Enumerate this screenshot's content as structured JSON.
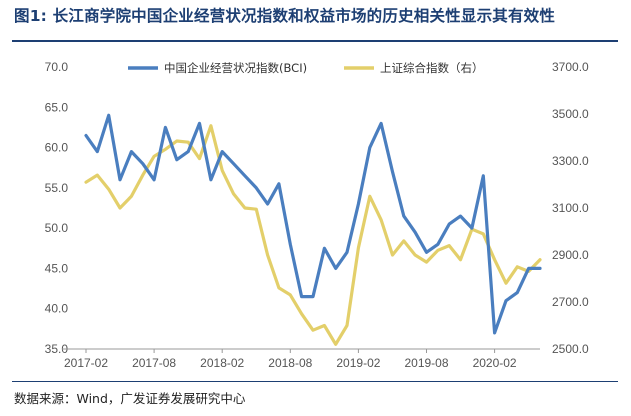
{
  "header": {
    "title": "图1: 长江商学院中国企业经营状况指数和权益市场的历史相关性显示其有效性"
  },
  "footer": {
    "source": "数据来源：Wind，广发证券发展研究中心"
  },
  "colors": {
    "bci": "#4a7ebf",
    "sci": "#e3cf6a",
    "title": "#1d3f73"
  },
  "chart_data": {
    "type": "line",
    "title": "",
    "legend": [
      "中国企业经营状况指数(BCI)",
      "上证综合指数（右）"
    ],
    "legend_position": "top",
    "x_tick_labels": [
      "2017-02",
      "2017-08",
      "2018-02",
      "2018-08",
      "2019-02",
      "2019-08",
      "2020-02"
    ],
    "y_left": {
      "min": 35,
      "max": 70,
      "ticks": [
        35.0,
        40.0,
        45.0,
        50.0,
        55.0,
        60.0,
        65.0,
        70.0
      ]
    },
    "y_right": {
      "min": 2500,
      "max": 3700,
      "ticks": [
        2500.0,
        2700.0,
        2900.0,
        3100.0,
        3300.0,
        3500.0,
        3700.0
      ]
    },
    "x_range": [
      "2017-02",
      "2020-06"
    ],
    "grid": false,
    "series": [
      {
        "name": "中国企业经营状况指数(BCI)",
        "axis": "left",
        "x": [
          "2017-02",
          "2017-03",
          "2017-04",
          "2017-05",
          "2017-06",
          "2017-07",
          "2017-08",
          "2017-09",
          "2017-10",
          "2017-11",
          "2017-12",
          "2018-01",
          "2018-02",
          "2018-03",
          "2018-04",
          "2018-05",
          "2018-06",
          "2018-07",
          "2018-08",
          "2018-09",
          "2018-10",
          "2018-11",
          "2018-12",
          "2019-01",
          "2019-02",
          "2019-03",
          "2019-04",
          "2019-05",
          "2019-06",
          "2019-07",
          "2019-08",
          "2019-09",
          "2019-10",
          "2019-11",
          "2019-12",
          "2020-01",
          "2020-02",
          "2020-03",
          "2020-04",
          "2020-05",
          "2020-06"
        ],
        "values": [
          61.5,
          59.5,
          64.0,
          56.0,
          59.5,
          58.0,
          56.0,
          62.5,
          58.5,
          59.5,
          63.0,
          56.0,
          59.5,
          58.0,
          56.5,
          55.0,
          53.0,
          55.5,
          48.0,
          41.5,
          41.5,
          47.5,
          45.0,
          47.0,
          53.0,
          60.0,
          63.0,
          57.0,
          51.5,
          49.5,
          47.0,
          48.0,
          50.5,
          51.5,
          50.0,
          56.5,
          37.0,
          41.0,
          42.0,
          45.0,
          45.0
        ]
      },
      {
        "name": "上证综合指数（右）",
        "axis": "right",
        "x": [
          "2017-02",
          "2017-03",
          "2017-04",
          "2017-05",
          "2017-06",
          "2017-07",
          "2017-08",
          "2017-09",
          "2017-10",
          "2017-11",
          "2017-12",
          "2018-01",
          "2018-02",
          "2018-03",
          "2018-04",
          "2018-05",
          "2018-06",
          "2018-07",
          "2018-08",
          "2018-09",
          "2018-10",
          "2018-11",
          "2018-12",
          "2019-01",
          "2019-02",
          "2019-03",
          "2019-04",
          "2019-05",
          "2019-06",
          "2019-07",
          "2019-08",
          "2019-09",
          "2019-10",
          "2019-11",
          "2019-12",
          "2020-01",
          "2020-02",
          "2020-03",
          "2020-04",
          "2020-05",
          "2020-06"
        ],
        "values": [
          3210,
          3240,
          3180,
          3100,
          3150,
          3240,
          3320,
          3350,
          3385,
          3380,
          3310,
          3450,
          3260,
          3160,
          3100,
          3095,
          2900,
          2760,
          2730,
          2650,
          2580,
          2600,
          2520,
          2600,
          2930,
          3150,
          3050,
          2900,
          2960,
          2900,
          2870,
          2920,
          2940,
          2880,
          3010,
          2990,
          2880,
          2780,
          2850,
          2830,
          2880
        ]
      }
    ]
  }
}
